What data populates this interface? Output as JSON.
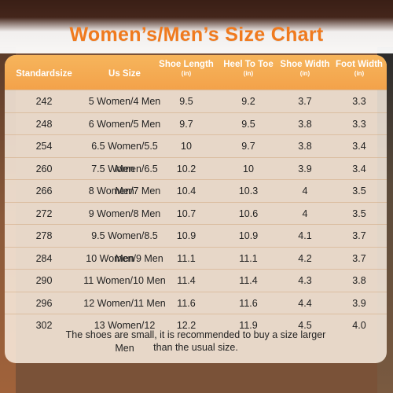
{
  "title": "Women’s/Men’s Size Chart",
  "headers": [
    {
      "label": "Standardsize",
      "unit": ""
    },
    {
      "label": "Us Size",
      "unit": ""
    },
    {
      "label": "Shoe Length",
      "unit": "(in)"
    },
    {
      "label": "Heel To Toe",
      "unit": "(in)"
    },
    {
      "label": "Shoe Width",
      "unit": "(in)"
    },
    {
      "label": "Foot Width",
      "unit": "(in)"
    }
  ],
  "rows": [
    [
      "242",
      "5 Women/4 Men",
      "9.5",
      "9.2",
      "3.7",
      "3.3"
    ],
    [
      "248",
      "6 Women/5 Men",
      "9.7",
      "9.5",
      "3.8",
      "3.3"
    ],
    [
      "254",
      "6.5 Women/5.5 Men",
      "10",
      "9.7",
      "3.8",
      "3.4"
    ],
    [
      "260",
      "7.5 Women/6.5 Men",
      "10.2",
      "10",
      "3.9",
      "3.4"
    ],
    [
      "266",
      "8 Women/7 Men",
      "10.4",
      "10.3",
      "4",
      "3.5"
    ],
    [
      "272",
      "9 Women/8 Men",
      "10.7",
      "10.6",
      "4",
      "3.5"
    ],
    [
      "278",
      "9.5 Women/8.5 Men",
      "10.9",
      "10.9",
      "4.1",
      "3.7"
    ],
    [
      "284",
      "10 Women/9 Men",
      "11.1",
      "11.1",
      "4.2",
      "3.7"
    ],
    [
      "290",
      "11 Women/10 Men",
      "11.4",
      "11.4",
      "4.3",
      "3.8"
    ],
    [
      "296",
      "12 Women/11 Men",
      "11.6",
      "11.6",
      "4.4",
      "3.9"
    ],
    [
      "302",
      "13 Women/12 Men",
      "12.2",
      "11.9",
      "4.5",
      "4.0"
    ]
  ],
  "note_line1": "The shoes are small, it is recommended to buy a size larger",
  "note_line2": "than the usual size.",
  "colors": {
    "title": "#f07a1e",
    "header_bg": "#f3a24a",
    "table_bg": "#fff4e8"
  }
}
